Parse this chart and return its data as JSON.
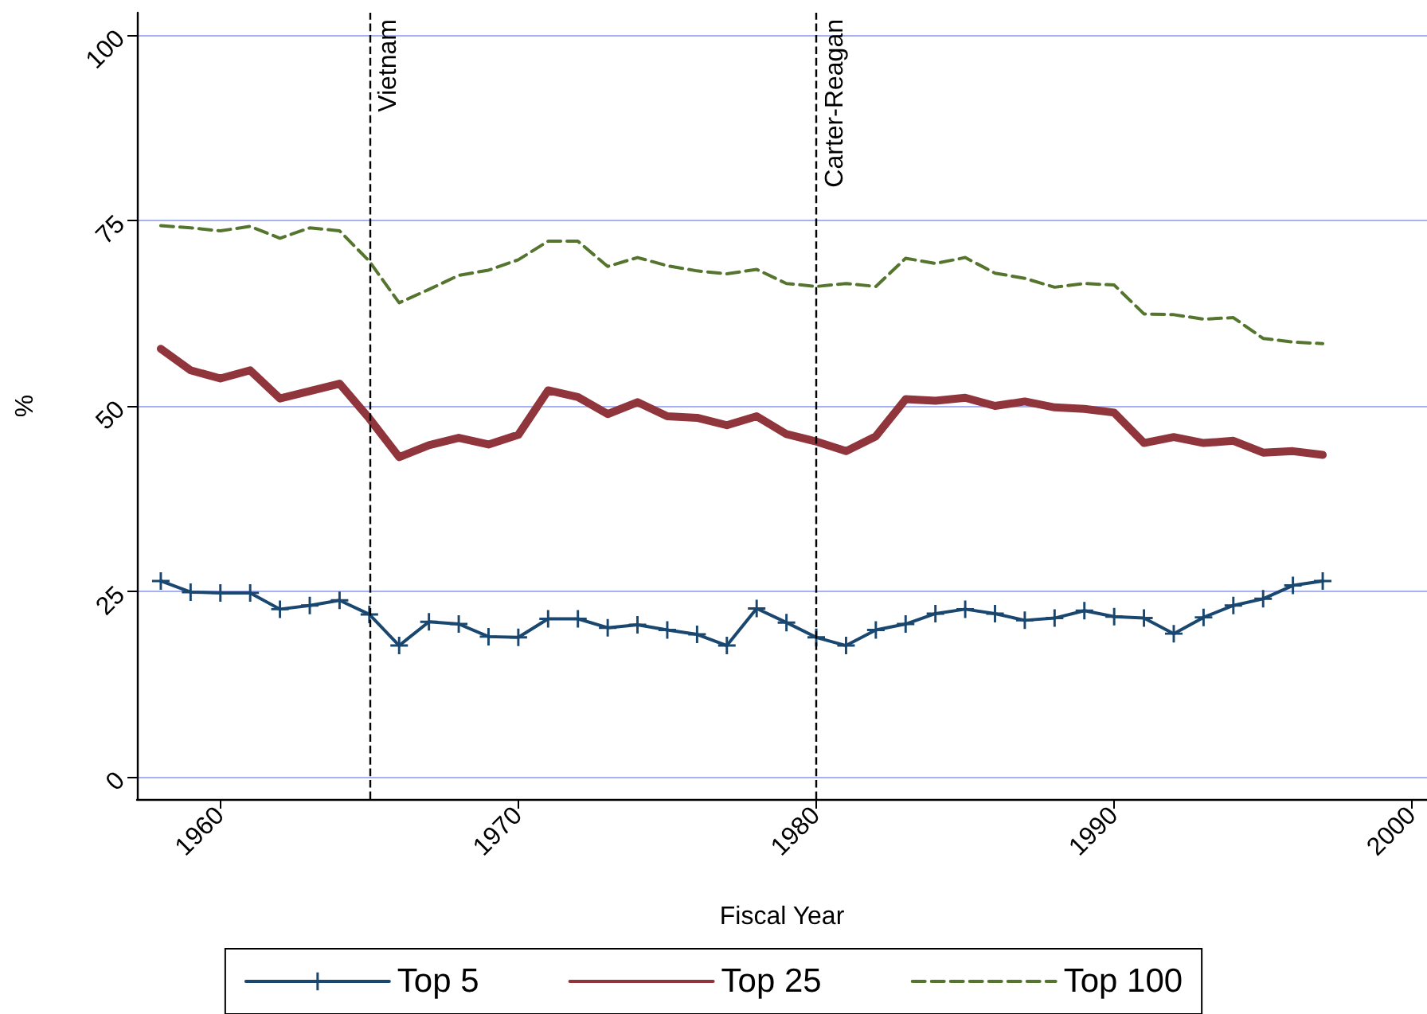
{
  "chart_data": {
    "type": "line",
    "xlabel": "Fiscal Year",
    "ylabel": "%",
    "x": [
      1958,
      1959,
      1960,
      1961,
      1962,
      1963,
      1964,
      1965,
      1966,
      1967,
      1968,
      1969,
      1970,
      1971,
      1972,
      1973,
      1974,
      1975,
      1976,
      1977,
      1978,
      1979,
      1980,
      1981,
      1982,
      1983,
      1984,
      1985,
      1986,
      1987,
      1988,
      1989,
      1990,
      1991,
      1992,
      1993,
      1994,
      1995,
      1996,
      1997
    ],
    "xlim": [
      1957.2,
      2000.5
    ],
    "xticks": [
      1960,
      1970,
      1980,
      1990,
      2000
    ],
    "ylim": [
      -3,
      103
    ],
    "yticks": [
      0,
      25,
      50,
      75,
      100
    ],
    "grid": "y",
    "legend": "bottom",
    "series": [
      {
        "name": "Top 5",
        "color": "#1a476f",
        "marker": "cross",
        "line_style": "solid",
        "values": [
          26.4,
          24.9,
          24.8,
          24.8,
          22.6,
          23.1,
          23.8,
          21.9,
          17.7,
          20.9,
          20.6,
          18.9,
          18.8,
          21.3,
          21.3,
          20.1,
          20.5,
          19.8,
          19.2,
          17.7,
          22.7,
          20.8,
          18.8,
          17.7,
          19.8,
          20.6,
          22.0,
          22.6,
          22.0,
          21.1,
          21.4,
          22.4,
          21.6,
          21.4,
          19.3,
          21.5,
          23.1,
          24.0,
          25.8,
          26.4
        ]
      },
      {
        "name": "Top 25",
        "color": "#90353b",
        "marker": "none",
        "line_style": "solid",
        "values": [
          57.7,
          54.8,
          53.7,
          54.8,
          51.0,
          52.0,
          53.0,
          48.3,
          43.1,
          44.7,
          45.7,
          44.8,
          46.1,
          52.1,
          51.2,
          48.9,
          50.5,
          48.6,
          48.4,
          47.4,
          48.6,
          46.2,
          45.2,
          43.9,
          45.9,
          50.9,
          50.7,
          51.1,
          50.0,
          50.6,
          49.8,
          49.6,
          49.1,
          45.0,
          45.8,
          45.0,
          45.3,
          43.7,
          43.9,
          43.4
        ]
      },
      {
        "name": "Top 100",
        "color": "#55752f",
        "marker": "none",
        "line_style": "dashed",
        "values": [
          74.3,
          74.0,
          73.6,
          74.2,
          72.6,
          74.0,
          73.6,
          69.5,
          63.9,
          65.7,
          67.6,
          68.3,
          69.7,
          72.2,
          72.2,
          68.8,
          70.0,
          68.9,
          68.2,
          67.8,
          68.4,
          66.5,
          66.1,
          66.5,
          66.1,
          69.9,
          69.2,
          70.0,
          67.9,
          67.2,
          66.0,
          66.5,
          66.3,
          62.4,
          62.3,
          61.7,
          61.9,
          59.1,
          58.6,
          58.4
        ]
      }
    ],
    "ref_lines": [
      {
        "axis": "x",
        "value": 1965,
        "label": "Vietnam",
        "color": "#000000",
        "line_style": "dashed"
      },
      {
        "axis": "x",
        "value": 1980,
        "label": "Carter-Reagan",
        "color": "#000000",
        "line_style": "dashed"
      }
    ]
  }
}
